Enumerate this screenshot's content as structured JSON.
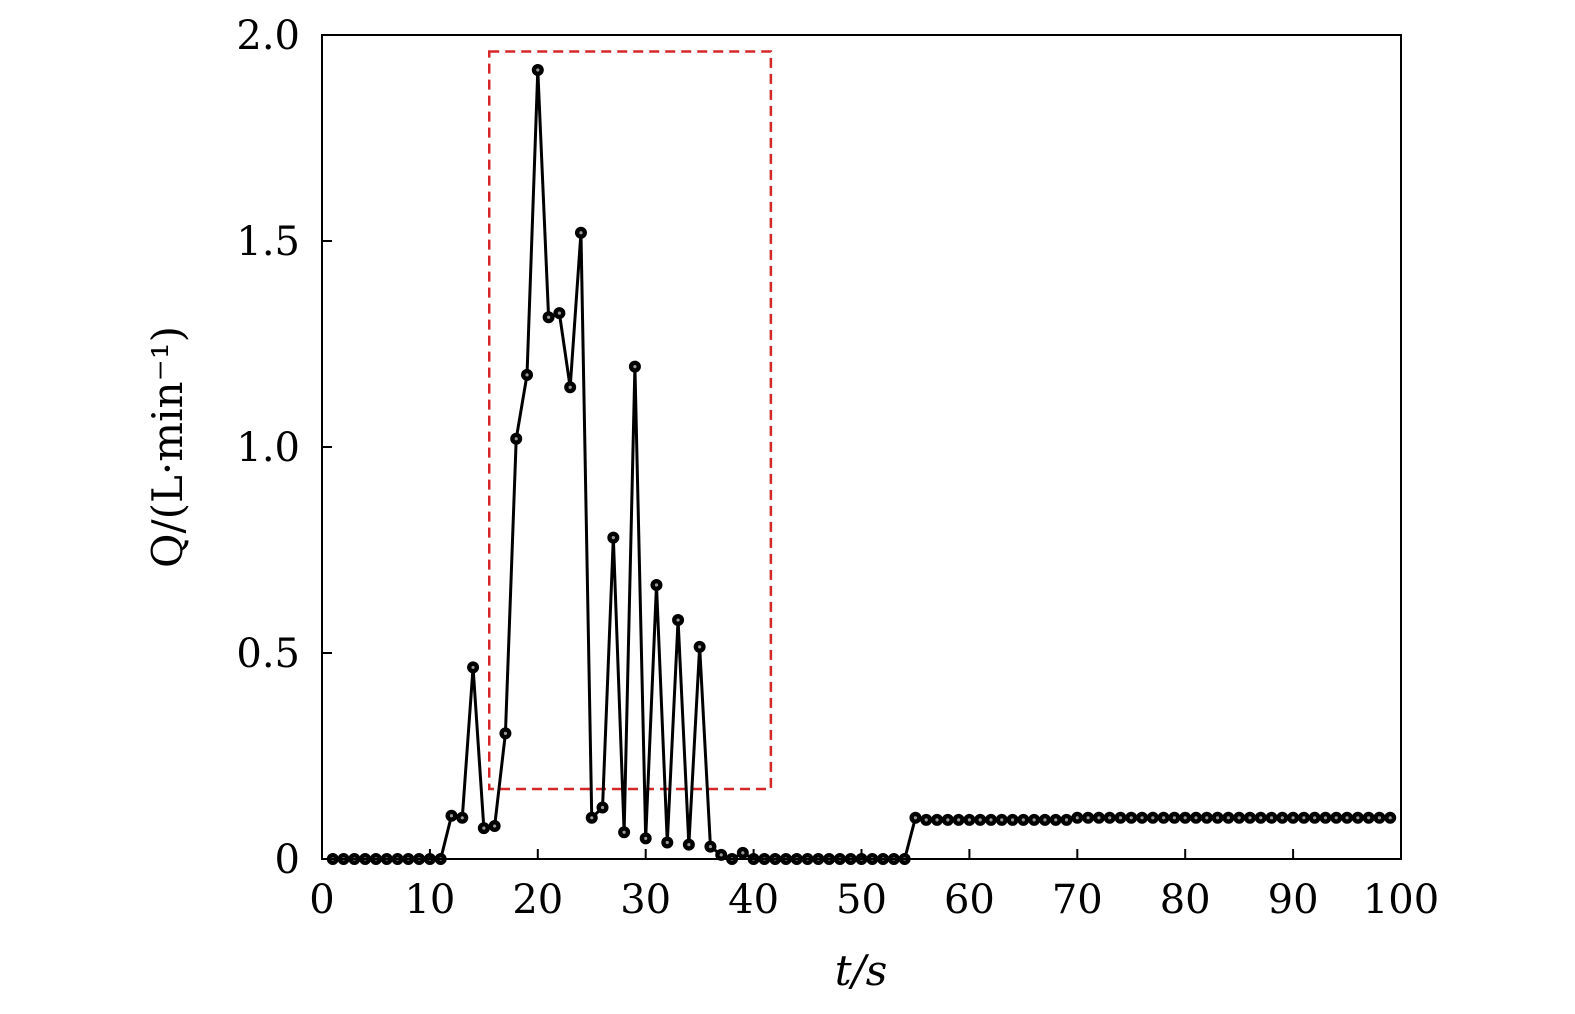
{
  "chart_data": {
    "type": "line",
    "title": "",
    "xlabel": "t/s",
    "ylabel": "Q/(L·min⁻¹)",
    "xlim": [
      0,
      100
    ],
    "ylim": [
      0,
      2.0
    ],
    "xticks": [
      0,
      10,
      20,
      30,
      40,
      50,
      60,
      70,
      80,
      90,
      100
    ],
    "xtick_labels": [
      "0",
      "10",
      "20",
      "30",
      "40",
      "50",
      "60",
      "70",
      "80",
      "90",
      "100"
    ],
    "yticks": [
      0,
      0.5,
      1.0,
      1.5,
      2.0
    ],
    "ytick_labels": [
      "0",
      "0.5",
      "1.0",
      "1.5",
      "2.0"
    ],
    "grid": false,
    "line_color": "#000000",
    "marker": "circle",
    "series": [
      {
        "x": [
          1,
          2,
          3,
          4,
          5,
          6,
          7,
          8,
          9,
          10,
          11,
          12,
          13,
          14,
          15,
          16,
          17,
          18,
          19,
          20,
          21,
          22,
          23,
          24,
          25,
          26,
          27,
          28,
          29,
          30,
          31,
          32,
          33,
          34,
          35,
          36,
          37,
          38,
          39,
          40,
          41,
          42,
          43,
          44,
          45,
          46,
          47,
          48,
          49,
          50,
          51,
          52,
          53,
          54,
          55,
          56,
          57,
          58,
          59,
          60,
          61,
          62,
          63,
          64,
          65,
          66,
          67,
          68,
          69,
          70,
          71,
          72,
          73,
          74,
          75,
          76,
          77,
          78,
          79,
          80,
          81,
          82,
          83,
          84,
          85,
          86,
          87,
          88,
          89,
          90,
          91,
          92,
          93,
          94,
          95,
          96,
          97,
          98,
          99
        ],
        "y": [
          0,
          0,
          0,
          0,
          0,
          0,
          0,
          0,
          0,
          0,
          0,
          0.105,
          0.1,
          0.465,
          0.075,
          0.08,
          0.305,
          1.02,
          1.175,
          1.915,
          1.315,
          1.325,
          1.145,
          1.52,
          0.1,
          0.125,
          0.78,
          0.065,
          1.195,
          0.05,
          0.665,
          0.04,
          0.58,
          0.035,
          0.515,
          0.03,
          0.01,
          0,
          0.015,
          0,
          0,
          0,
          0,
          0,
          0,
          0,
          0,
          0,
          0,
          0,
          0,
          0,
          0,
          0,
          0.1,
          0.095,
          0.095,
          0.095,
          0.095,
          0.095,
          0.095,
          0.095,
          0.095,
          0.095,
          0.095,
          0.095,
          0.095,
          0.095,
          0.095,
          0.1,
          0.1,
          0.1,
          0.1,
          0.1,
          0.1,
          0.1,
          0.1,
          0.1,
          0.1,
          0.1,
          0.1,
          0.1,
          0.1,
          0.1,
          0.1,
          0.1,
          0.1,
          0.1,
          0.1,
          0.1,
          0.1,
          0.1,
          0.1,
          0.1,
          0.1,
          0.1,
          0.1,
          0.1,
          0.1
        ]
      }
    ],
    "annotations": [
      {
        "type": "rect",
        "style": "dashed",
        "color": "#d62728",
        "x0": 15.5,
        "x1": 41.6,
        "y0": 0.17,
        "y1": 1.96
      }
    ]
  }
}
